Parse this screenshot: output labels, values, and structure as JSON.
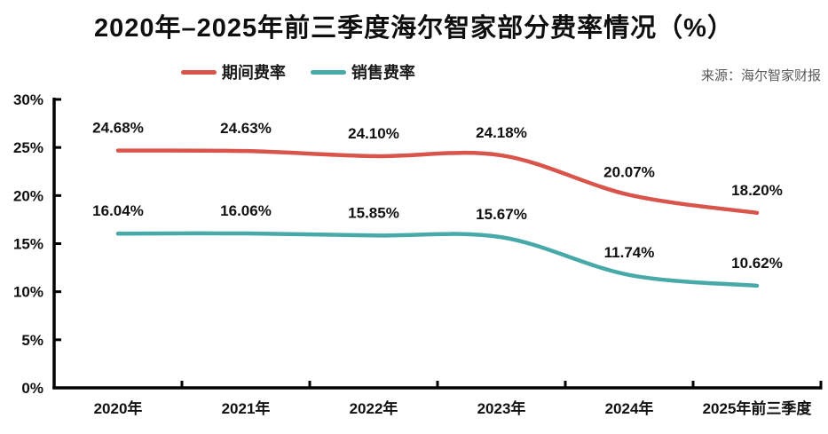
{
  "title": "2020年–2025年前三季度海尔智家部分费率情况（%）",
  "source": "来源：海尔智家财报",
  "legend": {
    "items": [
      {
        "label": "期间费率",
        "color": "#d9544a"
      },
      {
        "label": "销售费率",
        "color": "#48a9a9"
      }
    ]
  },
  "colors": {
    "series_red": "#d9544a",
    "series_teal": "#48a9a9",
    "axis": "#000000",
    "label_text": "#111111",
    "source_text": "#595959"
  },
  "chart_data": {
    "type": "line",
    "title": "2020年–2025年前三季度海尔智家部分费率情况（%）",
    "categories": [
      "2020年",
      "2021年",
      "2022年",
      "2023年",
      "2024年",
      "2025年前三季度"
    ],
    "series": [
      {
        "name": "期间费率",
        "color": "#d9544a",
        "values": [
          24.68,
          24.63,
          24.1,
          24.18,
          20.07,
          18.2
        ],
        "labels": [
          "24.68%",
          "24.63%",
          "24.10%",
          "24.18%",
          "20.07%",
          "18.20%"
        ]
      },
      {
        "name": "销售费率",
        "color": "#48a9a9",
        "values": [
          16.04,
          16.06,
          15.85,
          15.67,
          11.74,
          10.62
        ],
        "labels": [
          "16.04%",
          "16.06%",
          "15.85%",
          "15.67%",
          "11.74%",
          "10.62%"
        ]
      }
    ],
    "xlabel": "",
    "ylabel": "",
    "ylim": [
      0,
      30
    ],
    "ytick_step": 5,
    "yticks": [
      "0%",
      "5%",
      "10%",
      "15%",
      "20%",
      "25%",
      "30%"
    ],
    "grid": false,
    "legend_position": "top-center",
    "smooth": true,
    "data_labels": true
  }
}
